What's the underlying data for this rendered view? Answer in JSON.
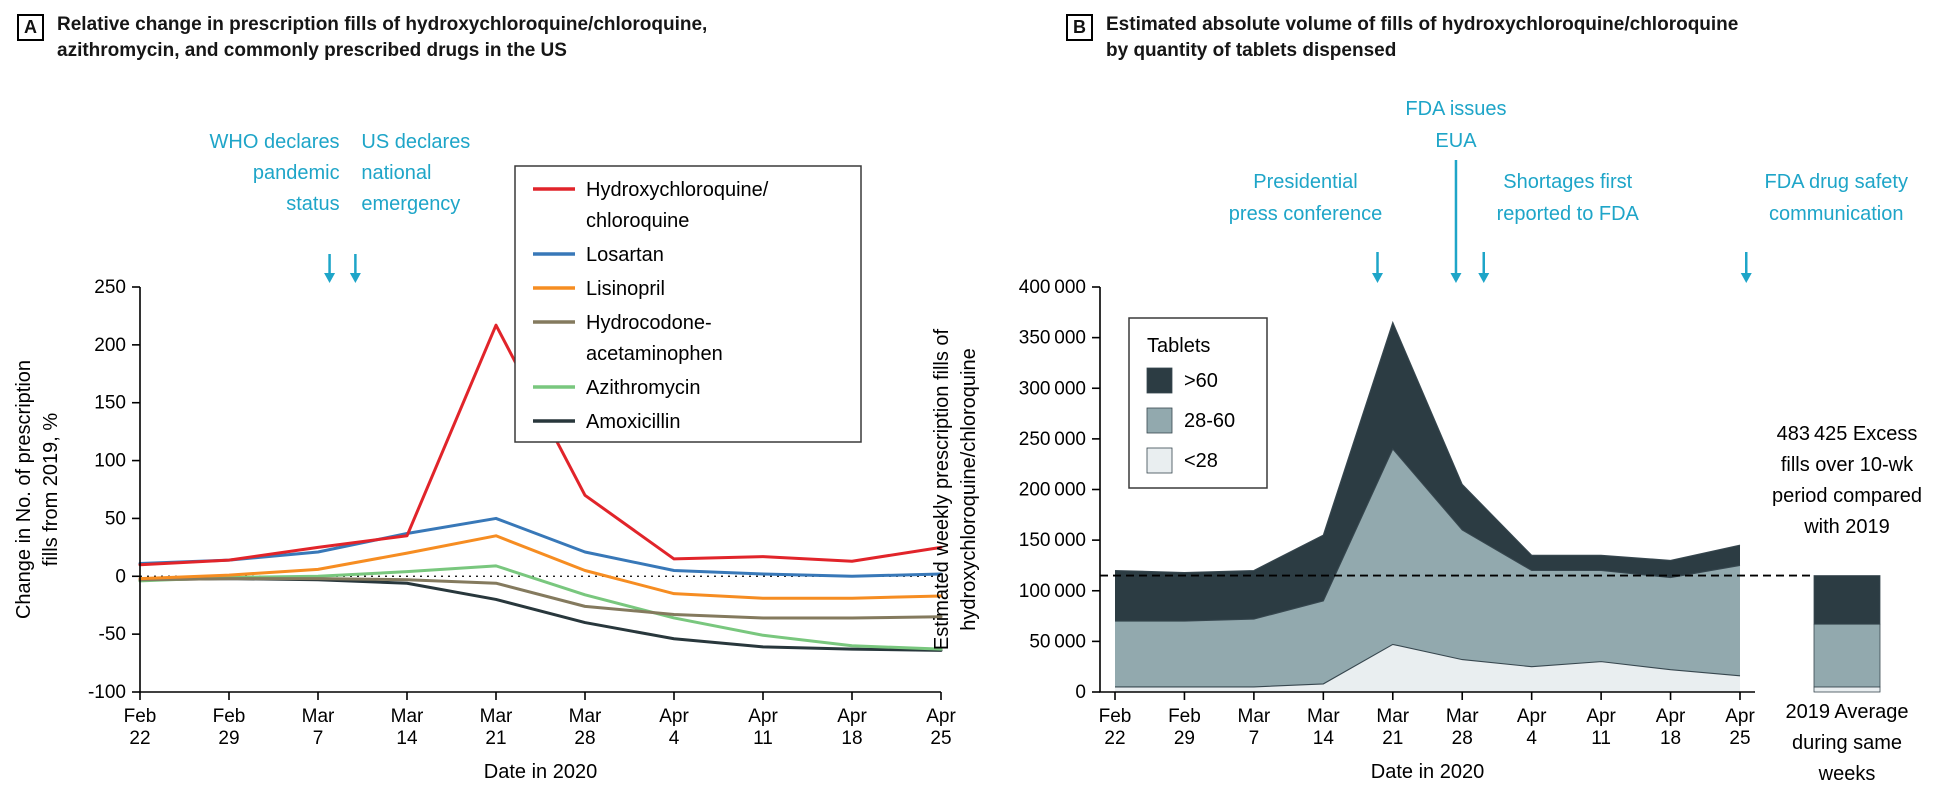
{
  "figure": {
    "panels": [
      {
        "label": "A",
        "title_lines": [
          "Relative change in prescription fills of hydroxychloroquine/chloroquine,",
          "azithromycin, and commonly prescribed drugs in the US"
        ]
      },
      {
        "label": "B",
        "title_lines": [
          "Estimated absolute volume of fills of hydroxychloroquine/chloroquine",
          "by quantity of tablets dispensed"
        ]
      }
    ]
  },
  "colors": {
    "annotation": "#1ea5c8",
    "axis": "#000000",
    "text": "#111111",
    "area_edge": "#37474f"
  },
  "chart_data": [
    {
      "type": "line",
      "panel": "A",
      "title": "Relative change in prescription fills of hydroxychloroquine/chloroquine, azithromycin, and commonly prescribed drugs in the US",
      "xlabel": "Date in 2020",
      "ylabel": "Change in No. of prescription fills from 2019, %",
      "ylabel_lines": [
        "Change in No. of prescription",
        "fills from 2019, %"
      ],
      "ylim": [
        -100,
        250
      ],
      "yticks": [
        250,
        200,
        150,
        100,
        50,
        0,
        -50,
        -100
      ],
      "zero_reference_line": true,
      "grid": false,
      "legend_position": "top-right-box",
      "categories": [
        "Feb 22",
        "Feb 29",
        "Mar 7",
        "Mar 14",
        "Mar 21",
        "Mar 28",
        "Apr 4",
        "Apr 11",
        "Apr 18",
        "Apr 25"
      ],
      "category_lines": [
        [
          "Feb",
          "22"
        ],
        [
          "Feb",
          "29"
        ],
        [
          "Mar",
          "7"
        ],
        [
          "Mar",
          "14"
        ],
        [
          "Mar",
          "21"
        ],
        [
          "Mar",
          "28"
        ],
        [
          "Apr",
          "4"
        ],
        [
          "Apr",
          "11"
        ],
        [
          "Apr",
          "18"
        ],
        [
          "Apr",
          "25"
        ]
      ],
      "series": [
        {
          "name": "Hydroxychloroquine/chloroquine",
          "legend_lines": [
            "Hydroxychloroquine/",
            "chloroquine"
          ],
          "color": "#e1242a",
          "values": [
            10,
            14,
            25,
            35,
            217,
            70,
            15,
            17,
            13,
            25
          ]
        },
        {
          "name": "Losartan",
          "legend_lines": [
            "Losartan"
          ],
          "color": "#3878b8",
          "values": [
            11,
            14,
            21,
            37,
            50,
            21,
            5,
            2,
            0,
            2
          ]
        },
        {
          "name": "Lisinopril",
          "legend_lines": [
            "Lisinopril"
          ],
          "color": "#f68d22",
          "values": [
            -2,
            1,
            6,
            20,
            35,
            5,
            -15,
            -19,
            -19,
            -17
          ]
        },
        {
          "name": "Hydrocodone-acetaminophen",
          "legend_lines": [
            "Hydrocodone-",
            "acetaminophen"
          ],
          "color": "#847a5e",
          "values": [
            -3,
            -2,
            -2,
            -3,
            -6,
            -26,
            -33,
            -36,
            -36,
            -35
          ]
        },
        {
          "name": "Azithromycin",
          "legend_lines": [
            "Azithromycin"
          ],
          "color": "#79c77e",
          "values": [
            -4,
            -1,
            0,
            4,
            9,
            -16,
            -36,
            -51,
            -60,
            -63
          ]
        },
        {
          "name": "Amoxicillin",
          "legend_lines": [
            "Amoxicillin"
          ],
          "color": "#28373c",
          "values": [
            -3,
            -2,
            -3,
            -6,
            -20,
            -40,
            -54,
            -61,
            -63,
            -64
          ]
        }
      ],
      "annotations": [
        {
          "lines": [
            "WHO declares",
            "pandemic",
            "status"
          ],
          "anchor": "end",
          "arrow_index": 2.13,
          "text_dx": 10,
          "text_y": 148,
          "line_h": 31,
          "arrow_y1": 254,
          "arrow_y2": 283
        },
        {
          "lines": [
            "US declares",
            "national",
            "emergency"
          ],
          "anchor": "start",
          "arrow_index": 2.42,
          "text_dx": 6,
          "text_y": 148,
          "line_h": 31,
          "arrow_y1": 254,
          "arrow_y2": 283
        }
      ]
    },
    {
      "type": "area",
      "stacked": true,
      "panel": "B",
      "title": "Estimated absolute volume of fills of hydroxychloroquine/chloroquine by quantity of tablets dispensed",
      "xlabel": "Date in 2020",
      "ylabel": "Estimated weekly prescription fills of hydroxychloroquine/chloroquine",
      "ylabel_lines": [
        "Estimated weekly prescription fills of",
        "hydroxychloroquine/chloroquine"
      ],
      "ylim": [
        0,
        400000
      ],
      "yticks": [
        0,
        50000,
        100000,
        150000,
        200000,
        250000,
        300000,
        350000,
        400000
      ],
      "ytick_labels": [
        "0",
        "50 000",
        "100 000",
        "150 000",
        "200 000",
        "250 000",
        "300 000",
        "350 000",
        "400 000"
      ],
      "grid": false,
      "categories": [
        "Feb 22",
        "Feb 29",
        "Mar 7",
        "Mar 14",
        "Mar 21",
        "Mar 28",
        "Apr 4",
        "Apr 11",
        "Apr 18",
        "Apr 25"
      ],
      "category_lines": [
        [
          "Feb",
          "22"
        ],
        [
          "Feb",
          "29"
        ],
        [
          "Mar",
          "7"
        ],
        [
          "Mar",
          "14"
        ],
        [
          "Mar",
          "21"
        ],
        [
          "Mar",
          "28"
        ],
        [
          "Apr",
          "4"
        ],
        [
          "Apr",
          "11"
        ],
        [
          "Apr",
          "18"
        ],
        [
          "Apr",
          "25"
        ]
      ],
      "series": [
        {
          "name": "<28",
          "color": "#e9eef0",
          "values": [
            5000,
            5000,
            5000,
            8000,
            47000,
            32000,
            25000,
            30000,
            22000,
            16000
          ]
        },
        {
          "name": "28-60",
          "color": "#92a9ae",
          "values": [
            65000,
            65000,
            67000,
            82000,
            193000,
            128000,
            95000,
            90000,
            91000,
            109000
          ]
        },
        {
          "name": ">60",
          "color": "#2c3c43",
          "values": [
            50000,
            48000,
            48000,
            65000,
            125000,
            45000,
            15000,
            15000,
            17000,
            20000
          ]
        }
      ],
      "legend": {
        "title": "Tablets",
        "entries": [
          {
            "label": ">60",
            "color": "#2c3c43"
          },
          {
            "label": "28-60",
            "color": "#92a9ae"
          },
          {
            "label": "<28",
            "color": "#e9eef0"
          }
        ]
      },
      "baseline_2019": {
        "value": 115000,
        "style": "dashed"
      },
      "side_note_lines": [
        "483 425 Excess",
        "fills over 10-wk",
        "period compared",
        "with 2019"
      ],
      "reference_bar": {
        "caption_lines": [
          "2019 Average",
          "during same",
          "weeks"
        ],
        "segments": [
          {
            "label": "<28",
            "value": 5000,
            "color": "#e9eef0"
          },
          {
            "label": "28-60",
            "value": 62000,
            "color": "#92a9ae"
          },
          {
            "label": ">60",
            "value": 48000,
            "color": "#2c3c43"
          }
        ]
      },
      "annotations": [
        {
          "lines": [
            "Presidential",
            "press conference"
          ],
          "anchor": "middle",
          "arrow_index": 3.78,
          "text_dx": -72,
          "text_y": 188,
          "line_h": 32,
          "arrow_y1": 252,
          "arrow_y2": 283
        },
        {
          "lines": [
            "FDA issues",
            "EUA"
          ],
          "anchor": "middle",
          "arrow_index": 4.91,
          "text_dx": 0,
          "text_y": 115,
          "line_h": 32,
          "arrow_y1": 160,
          "arrow_y2": 283
        },
        {
          "lines": [
            "Shortages first",
            "reported to FDA"
          ],
          "anchor": "middle",
          "arrow_index": 5.31,
          "text_dx": 84,
          "text_y": 188,
          "line_h": 32,
          "arrow_y1": 252,
          "arrow_y2": 283
        },
        {
          "lines": [
            "FDA drug safety",
            "communication"
          ],
          "anchor": "middle",
          "arrow_index": 9.09,
          "text_dx": 90,
          "text_y": 188,
          "line_h": 32,
          "arrow_y1": 252,
          "arrow_y2": 283
        }
      ]
    }
  ]
}
